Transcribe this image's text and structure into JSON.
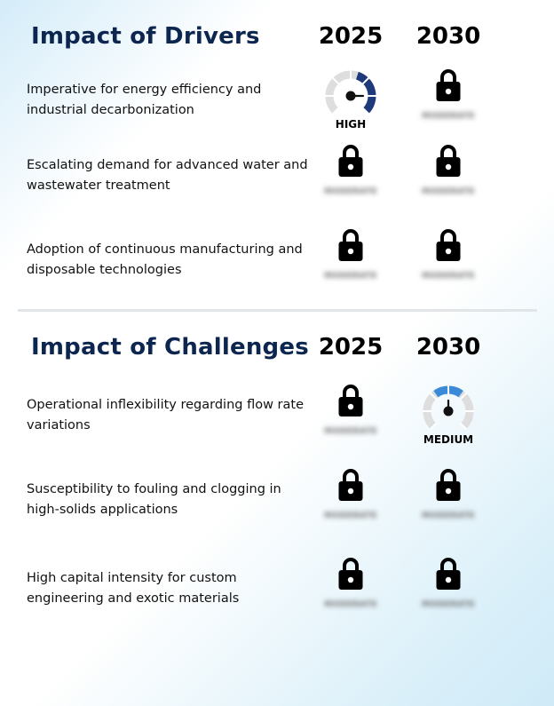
{
  "drivers": {
    "title": "Impact of Drivers",
    "year1": "2025",
    "year2": "2030",
    "rows": [
      {
        "label": "Imperative for energy efficiency and industrial decarbonization",
        "cell_2025": {
          "type": "gauge",
          "level": "HIGH",
          "value": 0.3,
          "color": "#1e3a7a"
        },
        "cell_2030": {
          "type": "locked",
          "hidden_text": "MODERATE"
        }
      },
      {
        "label": "Escalating demand for advanced water and wastewater treatment",
        "cell_2025": {
          "type": "locked",
          "hidden_text": "MODERATE"
        },
        "cell_2030": {
          "type": "locked",
          "hidden_text": "MODERATE"
        }
      },
      {
        "label": "Adoption of continuous manufacturing and disposable technologies",
        "cell_2025": {
          "type": "locked",
          "hidden_text": "MODERATE"
        },
        "cell_2030": {
          "type": "locked",
          "hidden_text": "MODERATE"
        }
      }
    ]
  },
  "challenges": {
    "title": "Impact of Challenges",
    "year1": "2025",
    "year2": "2030",
    "rows": [
      {
        "label": "Operational inflexibility regarding flow rate variations",
        "cell_2025": {
          "type": "locked",
          "hidden_text": "MODERATE"
        },
        "cell_2030": {
          "type": "gauge",
          "level": "MEDIUM",
          "value": 0.5,
          "color": "#3a8ad8"
        }
      },
      {
        "label": "Susceptibility to fouling and clogging in high-solids applications",
        "cell_2025": {
          "type": "locked",
          "hidden_text": "MODERATE"
        },
        "cell_2030": {
          "type": "locked",
          "hidden_text": "MODERATE"
        }
      },
      {
        "label": "High capital intensity for custom engineering and exotic materials",
        "cell_2025": {
          "type": "locked",
          "hidden_text": "MODERATE"
        },
        "cell_2030": {
          "type": "locked",
          "hidden_text": "MODERATE"
        }
      }
    ]
  },
  "colors": {
    "title": "#0c2650",
    "gauge_track": "#dedede",
    "divider": "#e2e5e8"
  },
  "icons": {
    "lock": "lock-icon",
    "gauge": "gauge-icon"
  }
}
